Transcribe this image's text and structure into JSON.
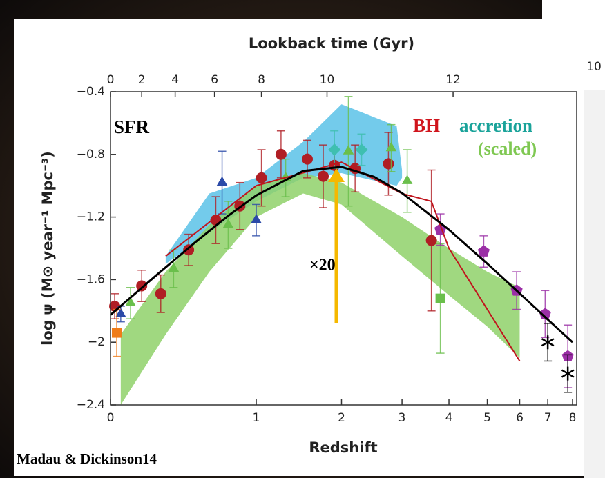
{
  "chart_data": {
    "type": "scatter",
    "xlabel": "Redshift",
    "x2label": "Lookback time (Gyr)",
    "ylabel": "log ψ (M⊙ year⁻¹ Mpc⁻³)",
    "xscale": "log1p",
    "xlim": [
      0,
      8
    ],
    "ylim": [
      -2.4,
      -0.4
    ],
    "xticks": [
      0,
      1,
      2,
      3,
      4,
      5,
      6,
      7,
      8
    ],
    "yticks": [
      {
        "value": -0.4,
        "label": "−0.4"
      },
      {
        "value": -0.8,
        "label": "−0.8"
      },
      {
        "value": -1.2,
        "label": "−1.2"
      },
      {
        "value": -1.6,
        "label": "−1.6"
      },
      {
        "value": -2,
        "label": "−2"
      },
      {
        "value": -2.4,
        "label": "−2.4"
      }
    ],
    "x2ticks": [
      {
        "value": 0,
        "label": "0"
      },
      {
        "value": 0.16,
        "label": "2"
      },
      {
        "value": 0.36,
        "label": "4"
      },
      {
        "value": 0.64,
        "label": "6"
      },
      {
        "value": 1.05,
        "label": "8"
      },
      {
        "value": 1.8,
        "label": "10"
      },
      {
        "value": 4.1,
        "label": "12"
      }
    ],
    "bands": [
      {
        "color": "#5bc2e7",
        "x": [
          0.3,
          0.6,
          1.0,
          1.5,
          2.0,
          2.9,
          3.0
        ],
        "upper": [
          -1.45,
          -1.05,
          -0.95,
          -0.72,
          -0.48,
          -0.62,
          -0.9
        ],
        "lower": [
          -1.5,
          -1.3,
          -1.1,
          -0.95,
          -0.92,
          -1.0,
          -0.95
        ]
      },
      {
        "color": "#8fd16a",
        "x": [
          0.05,
          0.3,
          0.6,
          1.0,
          1.5,
          2.0,
          3.0,
          4.0,
          5.0,
          6.0
        ],
        "upper": [
          -1.95,
          -1.55,
          -1.25,
          -1.0,
          -0.92,
          -0.98,
          -1.2,
          -1.4,
          -1.55,
          -1.65
        ],
        "lower": [
          -2.4,
          -1.95,
          -1.55,
          -1.2,
          -1.05,
          -1.12,
          -1.45,
          -1.7,
          -1.9,
          -2.1
        ]
      }
    ],
    "lines": [
      {
        "color": "#c0141c",
        "width": 2,
        "x": [
          0.3,
          1.0,
          2.0,
          3.0,
          3.6,
          4.0,
          6.0
        ],
        "values": [
          -1.45,
          -1.0,
          -0.85,
          -1.05,
          -1.1,
          -1.4,
          -2.12
        ]
      },
      {
        "color": "#000000",
        "width": 3,
        "x": [
          0,
          0.25,
          0.5,
          0.75,
          1,
          1.5,
          2,
          2.5,
          3,
          4,
          5,
          6,
          7,
          8
        ],
        "values": [
          -1.825,
          -1.566,
          -1.359,
          -1.192,
          -1.062,
          -0.906,
          -0.88,
          -0.943,
          -1.047,
          -1.281,
          -1.498,
          -1.688,
          -1.855,
          -2.0
        ]
      }
    ],
    "series": [
      {
        "color": "#b01e24",
        "marker": "circle",
        "x": [
          0.02,
          0.16,
          0.27,
          0.45,
          0.65,
          0.85,
          1.05,
          1.25,
          1.55,
          1.75,
          1.9,
          2.2,
          2.75,
          3.6
        ],
        "values": [
          -1.77,
          -1.64,
          -1.69,
          -1.41,
          -1.22,
          -1.13,
          -0.95,
          -0.8,
          -0.83,
          -0.94,
          -0.87,
          -0.89,
          -0.86,
          -1.35
        ],
        "errors": [
          0.08,
          0.1,
          0.12,
          0.1,
          0.15,
          0.15,
          0.18,
          0.15,
          0.12,
          0.2,
          0.1,
          0.15,
          0.2,
          0.45
        ]
      },
      {
        "color": "#6abf4b",
        "marker": "triangle",
        "x": [
          0.1,
          0.35,
          0.75,
          1.3,
          2.1,
          2.8,
          3.1
        ],
        "values": [
          -1.75,
          -1.53,
          -1.25,
          -0.95,
          -0.78,
          -0.76,
          -0.97
        ],
        "errors": [
          0.1,
          0.12,
          0.15,
          0.12,
          0.35,
          0.15,
          0.2
        ]
      },
      {
        "color": "#6abf4b",
        "marker": "square",
        "x": [
          3.8
        ],
        "values": [
          -1.72
        ],
        "errors": [
          0.35
        ]
      },
      {
        "color": "#9b2fa6",
        "marker": "pentagon",
        "x": [
          3.8,
          4.9,
          5.9,
          6.9,
          7.8
        ],
        "values": [
          -1.28,
          -1.42,
          -1.67,
          -1.82,
          -2.09
        ],
        "errors": [
          0.1,
          0.1,
          0.12,
          0.15,
          0.2
        ]
      },
      {
        "color": "#3fbfb0",
        "marker": "diamond",
        "x": [
          1.9,
          2.3
        ],
        "values": [
          -0.77,
          -0.77
        ],
        "errors": [
          0.12,
          0.1
        ]
      },
      {
        "color": "#2b4aa8",
        "marker": "triangle",
        "x": [
          0.05,
          0.7,
          1.0
        ],
        "values": [
          -1.82,
          -0.98,
          -1.22
        ],
        "errors": [
          0.05,
          0.2,
          0.1
        ]
      },
      {
        "color": "#f07d1a",
        "marker": "square",
        "x": [
          0.03
        ],
        "values": [
          -1.94
        ],
        "errors": [
          0.15
        ]
      },
      {
        "color": "#000000",
        "marker": "star",
        "x": [
          7.0,
          7.8
        ],
        "values": [
          -2.0,
          -2.2
        ],
        "errors": [
          0.12,
          0.12
        ]
      }
    ],
    "annotations": {
      "sfr": "SFR",
      "bh": "BH",
      "accretion": "accretion",
      "scaled": "(scaled)",
      "factor": "×20",
      "credit": "Madau & Dickinson14",
      "corner": "10"
    }
  }
}
